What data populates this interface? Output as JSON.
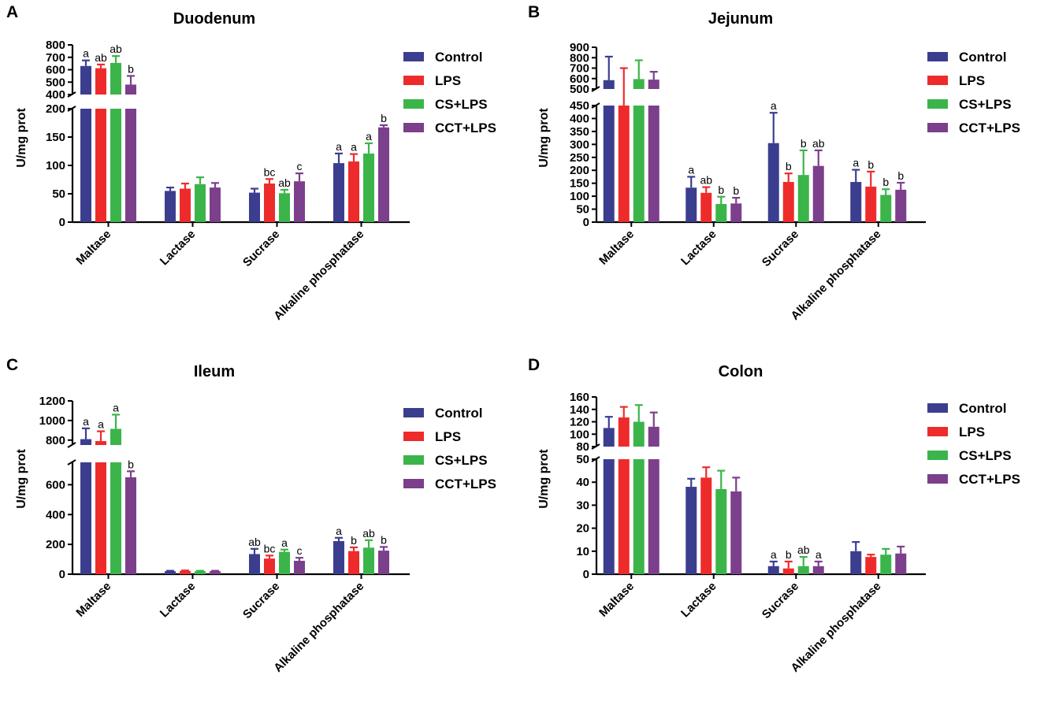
{
  "figure": {
    "categories": [
      "Maltase",
      "Lactase",
      "Sucrase",
      "Alkaline phosphatase"
    ],
    "groups": [
      "Control",
      "LPS",
      "CS+LPS",
      "CCT+LPS"
    ],
    "colors": {
      "Control": "#3b3e8f",
      "LPS": "#ee2b2b",
      "CS+LPS": "#3bb54a",
      "CCT+LPS": "#7b3f8c"
    }
  },
  "chart_data": [
    {
      "panel": "A",
      "type": "bar",
      "title": "Duodenum",
      "ylabel": "U/mg prot",
      "axis_break": true,
      "lower_range": [
        0,
        200
      ],
      "lower_ticks": [
        0,
        50,
        100,
        150,
        200
      ],
      "upper_range": [
        400,
        800
      ],
      "upper_ticks": [
        400,
        500,
        600,
        700,
        800
      ],
      "categories": [
        "Maltase",
        "Lactase",
        "Sucrase",
        "Alkaline phosphatase"
      ],
      "series": [
        {
          "name": "Control",
          "values": [
            630,
            55,
            52,
            104
          ],
          "errors": [
            45,
            6,
            7,
            17
          ]
        },
        {
          "name": "LPS",
          "values": [
            612,
            59,
            68,
            107
          ],
          "errors": [
            30,
            9,
            8,
            13
          ]
        },
        {
          "name": "CS+LPS",
          "values": [
            655,
            67,
            51,
            121
          ],
          "errors": [
            55,
            12,
            6,
            18
          ]
        },
        {
          "name": "CCT+LPS",
          "values": [
            480,
            61,
            72,
            167
          ],
          "errors": [
            70,
            8,
            14,
            4
          ]
        }
      ],
      "significance": [
        [
          "a",
          "",
          "",
          "a"
        ],
        [
          "ab",
          "",
          "bc",
          "a"
        ],
        [
          "ab",
          "",
          "ab",
          "a"
        ],
        [
          "b",
          "",
          "c",
          "b"
        ]
      ]
    },
    {
      "panel": "B",
      "type": "bar",
      "title": "Jejunum",
      "ylabel": "U/mg prot",
      "axis_break": true,
      "lower_range": [
        0,
        450
      ],
      "lower_ticks": [
        0,
        50,
        100,
        150,
        200,
        250,
        300,
        350,
        400,
        450
      ],
      "upper_range": [
        500,
        900
      ],
      "upper_ticks": [
        500,
        600,
        700,
        800,
        900
      ],
      "categories": [
        "Maltase",
        "Lactase",
        "Sucrase",
        "Alkaline phosphatase"
      ],
      "series": [
        {
          "name": "Control",
          "values": [
            585,
            133,
            305,
            155
          ],
          "errors": [
            225,
            42,
            117,
            47
          ]
        },
        {
          "name": "LPS",
          "values": [
            480,
            113,
            155,
            137
          ],
          "errors": [
            220,
            22,
            33,
            58
          ]
        },
        {
          "name": "CS+LPS",
          "values": [
            595,
            70,
            182,
            105
          ],
          "errors": [
            180,
            28,
            95,
            22
          ]
        },
        {
          "name": "CCT+LPS",
          "values": [
            590,
            72,
            217,
            125
          ],
          "errors": [
            75,
            22,
            60,
            27
          ]
        }
      ],
      "significance": [
        [
          "",
          "a",
          "a",
          "a"
        ],
        [
          "",
          "ab",
          "b",
          "b"
        ],
        [
          "",
          "b",
          "b",
          "b"
        ],
        [
          "",
          "b",
          "ab",
          "b"
        ]
      ]
    },
    {
      "panel": "C",
      "type": "bar",
      "title": "Ileum",
      "ylabel": "U/mg prot",
      "axis_break": true,
      "lower_range": [
        0,
        750
      ],
      "lower_ticks": [
        0,
        200,
        400,
        600
      ],
      "upper_range": [
        750,
        1200
      ],
      "upper_ticks": [
        800,
        1000,
        1200
      ],
      "categories": [
        "Maltase",
        "Lactase",
        "Sucrase",
        "Alkaline phosphatase"
      ],
      "series": [
        {
          "name": "Control",
          "values": [
            810,
            20,
            135,
            222
          ],
          "errors": [
            110,
            3,
            35,
            22
          ]
        },
        {
          "name": "LPS",
          "values": [
            790,
            22,
            105,
            155
          ],
          "errors": [
            100,
            3,
            20,
            25
          ]
        },
        {
          "name": "CS+LPS",
          "values": [
            915,
            20,
            150,
            178
          ],
          "errors": [
            145,
            3,
            15,
            50
          ]
        },
        {
          "name": "CCT+LPS",
          "values": [
            650,
            20,
            90,
            158
          ],
          "errors": [
            40,
            3,
            20,
            25
          ]
        }
      ],
      "significance": [
        [
          "a",
          "",
          "ab",
          "a"
        ],
        [
          "a",
          "",
          "bc",
          "b"
        ],
        [
          "a",
          "",
          "a",
          "ab"
        ],
        [
          "b",
          "",
          "c",
          "b"
        ]
      ]
    },
    {
      "panel": "D",
      "type": "bar",
      "title": "Colon",
      "ylabel": "U/mg prot",
      "axis_break": true,
      "lower_range": [
        0,
        50
      ],
      "lower_ticks": [
        0,
        10,
        20,
        30,
        40,
        50
      ],
      "upper_range": [
        80,
        160
      ],
      "upper_ticks": [
        80,
        100,
        120,
        140,
        160
      ],
      "categories": [
        "Maltase",
        "Lactase",
        "Sucrase",
        "Alkaline phosphatase"
      ],
      "series": [
        {
          "name": "Control",
          "values": [
            110,
            38,
            3.5,
            10
          ],
          "errors": [
            18,
            3.5,
            2,
            4
          ]
        },
        {
          "name": "LPS",
          "values": [
            127,
            42,
            2.5,
            7.5
          ],
          "errors": [
            17,
            4.5,
            3,
            1
          ]
        },
        {
          "name": "CS+LPS",
          "values": [
            120,
            37,
            3.5,
            8.5
          ],
          "errors": [
            27,
            8,
            4,
            2.5
          ]
        },
        {
          "name": "CCT+LPS",
          "values": [
            112,
            36,
            3.5,
            9
          ],
          "errors": [
            23,
            6,
            2,
            3
          ]
        }
      ],
      "significance": [
        [
          "",
          "",
          "a",
          ""
        ],
        [
          "",
          "",
          "b",
          ""
        ],
        [
          "",
          "",
          "ab",
          ""
        ],
        [
          "",
          "",
          "a",
          ""
        ]
      ]
    }
  ]
}
